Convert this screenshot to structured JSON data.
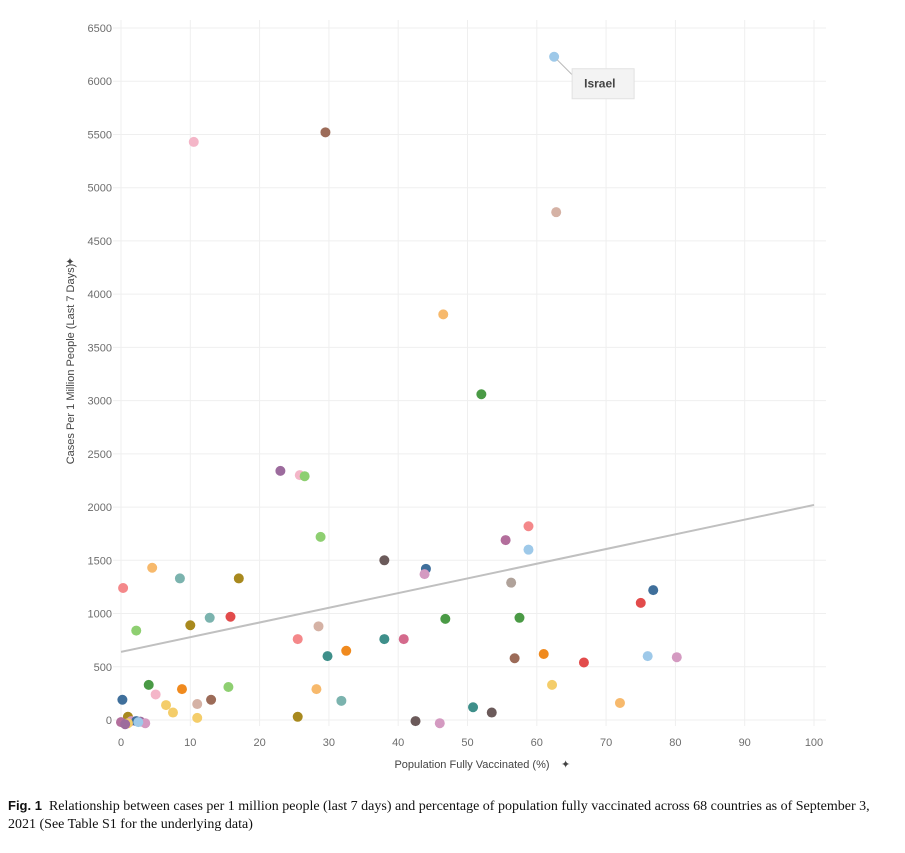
{
  "chart_data": {
    "type": "scatter",
    "xlabel": "Population Fully Vaccinated (%)",
    "ylabel": "Cases Per 1 Million People (Last 7 Days)",
    "xlim": [
      0,
      100
    ],
    "ylim": [
      0,
      6500
    ],
    "xticks": [
      "0",
      "10",
      "20",
      "30",
      "40",
      "50",
      "60",
      "70",
      "80",
      "90",
      "100"
    ],
    "yticks": [
      "0",
      "500",
      "1000",
      "1500",
      "2000",
      "2500",
      "3000",
      "3500",
      "4000",
      "4500",
      "5000",
      "5500",
      "6000",
      "6500"
    ],
    "trendline": {
      "x": [
        0,
        100
      ],
      "y": [
        640,
        2020
      ],
      "color": "#c0c0c0"
    },
    "annotation": {
      "label": "Israel",
      "x": 62.5,
      "y": 6230
    },
    "points": [
      {
        "x": 62.5,
        "y": 6230,
        "color": "#9ec9e9"
      },
      {
        "x": 29.5,
        "y": 5520,
        "color": "#9c6b58"
      },
      {
        "x": 10.5,
        "y": 5430,
        "color": "#f4b6c8"
      },
      {
        "x": 62.8,
        "y": 4770,
        "color": "#d5b2a5"
      },
      {
        "x": 46.5,
        "y": 3810,
        "color": "#f7b96c"
      },
      {
        "x": 52.0,
        "y": 3060,
        "color": "#4a9a45"
      },
      {
        "x": 23.0,
        "y": 2340,
        "color": "#9c6b9d"
      },
      {
        "x": 25.8,
        "y": 2300,
        "color": "#f4b6c8"
      },
      {
        "x": 26.5,
        "y": 2290,
        "color": "#8ecf71"
      },
      {
        "x": 58.8,
        "y": 1820,
        "color": "#f4888a"
      },
      {
        "x": 28.8,
        "y": 1720,
        "color": "#8ecf71"
      },
      {
        "x": 55.5,
        "y": 1690,
        "color": "#b36e9c"
      },
      {
        "x": 58.8,
        "y": 1600,
        "color": "#9ec9e9"
      },
      {
        "x": 38.0,
        "y": 1500,
        "color": "#6b5a5a"
      },
      {
        "x": 4.5,
        "y": 1430,
        "color": "#f7b96c"
      },
      {
        "x": 44.0,
        "y": 1420,
        "color": "#3f6f9b"
      },
      {
        "x": 43.8,
        "y": 1370,
        "color": "#d49ac1"
      },
      {
        "x": 17.0,
        "y": 1330,
        "color": "#a8891e"
      },
      {
        "x": 8.5,
        "y": 1330,
        "color": "#7bb3ae"
      },
      {
        "x": 56.3,
        "y": 1290,
        "color": "#b0a29a"
      },
      {
        "x": 0.3,
        "y": 1240,
        "color": "#f4888a"
      },
      {
        "x": 76.8,
        "y": 1220,
        "color": "#3f6f9b"
      },
      {
        "x": 75.0,
        "y": 1100,
        "color": "#e24b4b"
      },
      {
        "x": 15.8,
        "y": 970,
        "color": "#e24b4b"
      },
      {
        "x": 12.8,
        "y": 960,
        "color": "#7bb3ae"
      },
      {
        "x": 57.5,
        "y": 960,
        "color": "#4a9a45"
      },
      {
        "x": 46.8,
        "y": 950,
        "color": "#4a9a45"
      },
      {
        "x": 10.0,
        "y": 890,
        "color": "#a8891e"
      },
      {
        "x": 28.5,
        "y": 880,
        "color": "#d5b2a5"
      },
      {
        "x": 2.2,
        "y": 840,
        "color": "#8ecf71"
      },
      {
        "x": 25.5,
        "y": 760,
        "color": "#f4888a"
      },
      {
        "x": 38.0,
        "y": 760,
        "color": "#3e8f8a"
      },
      {
        "x": 40.8,
        "y": 760,
        "color": "#d46a8c"
      },
      {
        "x": 32.5,
        "y": 650,
        "color": "#f08a1e"
      },
      {
        "x": 61.0,
        "y": 620,
        "color": "#f08a1e"
      },
      {
        "x": 29.8,
        "y": 600,
        "color": "#3e8f8a"
      },
      {
        "x": 76.0,
        "y": 600,
        "color": "#9ec9e9"
      },
      {
        "x": 80.2,
        "y": 590,
        "color": "#d49ac1"
      },
      {
        "x": 56.8,
        "y": 580,
        "color": "#9c6b58"
      },
      {
        "x": 66.8,
        "y": 540,
        "color": "#e24b4b"
      },
      {
        "x": 4.0,
        "y": 330,
        "color": "#4a9a45"
      },
      {
        "x": 62.2,
        "y": 330,
        "color": "#f4cd6a"
      },
      {
        "x": 15.5,
        "y": 310,
        "color": "#8ecf71"
      },
      {
        "x": 28.2,
        "y": 290,
        "color": "#f7b96c"
      },
      {
        "x": 8.8,
        "y": 290,
        "color": "#f08a1e"
      },
      {
        "x": 5.0,
        "y": 240,
        "color": "#f4b6c8"
      },
      {
        "x": 0.2,
        "y": 190,
        "color": "#3f6f9b"
      },
      {
        "x": 13.0,
        "y": 190,
        "color": "#9c6b58"
      },
      {
        "x": 31.8,
        "y": 180,
        "color": "#7bb3ae"
      },
      {
        "x": 72.0,
        "y": 160,
        "color": "#f7b96c"
      },
      {
        "x": 11.0,
        "y": 150,
        "color": "#d5b2a5"
      },
      {
        "x": 6.5,
        "y": 140,
        "color": "#f4cd6a"
      },
      {
        "x": 50.8,
        "y": 120,
        "color": "#3e8f8a"
      },
      {
        "x": 7.5,
        "y": 70,
        "color": "#f4cd6a"
      },
      {
        "x": 53.5,
        "y": 70,
        "color": "#6b5a5a"
      },
      {
        "x": 25.5,
        "y": 30,
        "color": "#a8891e"
      },
      {
        "x": 11.0,
        "y": 20,
        "color": "#f4cd6a"
      },
      {
        "x": 1.0,
        "y": 30,
        "color": "#a8891e"
      },
      {
        "x": 42.5,
        "y": -10,
        "color": "#6b5a5a"
      },
      {
        "x": 46.0,
        "y": -30,
        "color": "#d49ac1"
      },
      {
        "x": 0.0,
        "y": -20,
        "color": "#b36e9c"
      },
      {
        "x": 1.5,
        "y": -10,
        "color": "#d49ac1"
      },
      {
        "x": 2.2,
        "y": -10,
        "color": "#3f6f9b"
      },
      {
        "x": 2.8,
        "y": -15,
        "color": "#9c6b9d"
      },
      {
        "x": 3.5,
        "y": -30,
        "color": "#d49ac1"
      },
      {
        "x": 1.0,
        "y": -30,
        "color": "#f4cd6a"
      },
      {
        "x": 2.5,
        "y": -20,
        "color": "#9ec9e9"
      },
      {
        "x": 0.6,
        "y": -40,
        "color": "#9c6b9d"
      }
    ]
  },
  "caption": {
    "fig_label": "Fig. 1",
    "text": "Relationship between cases per 1 million people (last 7 days) and percentage of population fully vaccinated across 68 countries as of September 3, 2021 (See Table S1 for the underlying data)"
  }
}
